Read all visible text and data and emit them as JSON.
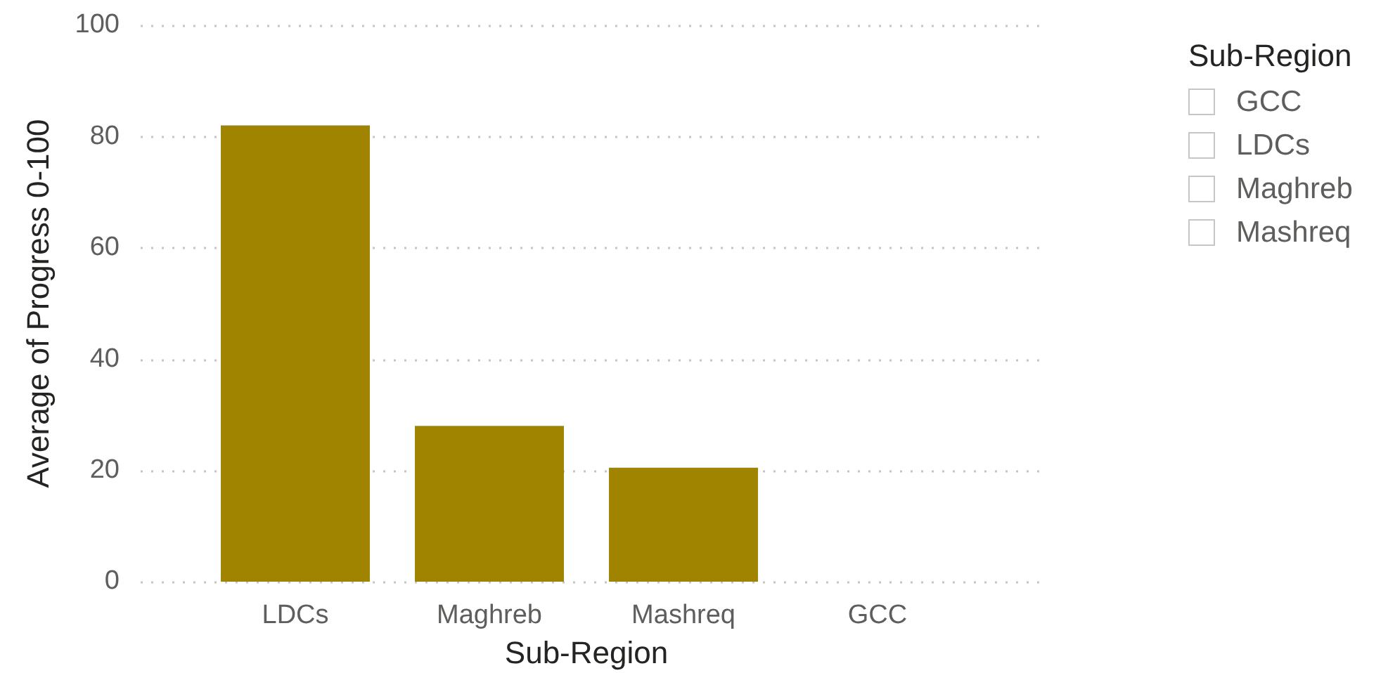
{
  "chart_data": [
    {
      "type": "bar",
      "xlabel": "Sub-Region",
      "ylabel": "Average of Progress 0-100",
      "categories": [
        "LDCs",
        "Maghreb",
        "Mashreq",
        "GCC"
      ],
      "values": [
        82,
        28,
        20.5,
        0
      ],
      "color": "#a08400",
      "ylim": [
        0,
        100
      ],
      "yticks": [
        0,
        20,
        40,
        60,
        80,
        100
      ],
      "grid": "y"
    },
    {
      "type": "other",
      "title": "Sub-Region",
      "annotations": [
        "GCC",
        "LDCs",
        "Maghreb",
        "Mashreq"
      ]
    }
  ]
}
